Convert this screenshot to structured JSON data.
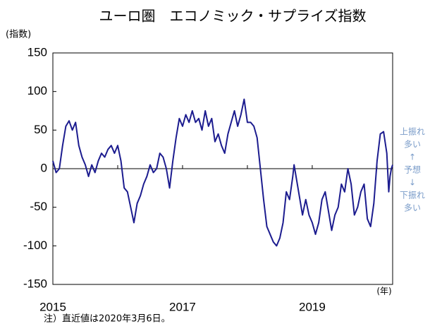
{
  "chart_data": {
    "type": "line",
    "title": "ユーロ圏　エコノミック・サプライズ指数",
    "y_label": "(指数)",
    "x_label": "(年)",
    "note": "注）直近値は2020年3月6日。",
    "annotations": [
      "上振れ",
      "多い",
      "↑",
      "予想",
      "↓",
      "下振れ",
      "多い"
    ],
    "color": "#1c1c8f",
    "xlim": [
      2015,
      2020.24
    ],
    "xticks": [
      2015,
      2017,
      2019
    ],
    "minor_xticks": [
      2016,
      2017,
      2018,
      2019,
      2020
    ],
    "ylim": [
      -150,
      150
    ],
    "yticks": [
      -150,
      -100,
      -50,
      0,
      50,
      100,
      150
    ],
    "x": [
      2015.0,
      2015.05,
      2015.1,
      2015.15,
      2015.2,
      2015.25,
      2015.3,
      2015.35,
      2015.4,
      2015.45,
      2015.5,
      2015.55,
      2015.6,
      2015.65,
      2015.7,
      2015.75,
      2015.8,
      2015.85,
      2015.9,
      2015.95,
      2016.0,
      2016.05,
      2016.1,
      2016.15,
      2016.2,
      2016.25,
      2016.3,
      2016.35,
      2016.4,
      2016.45,
      2016.5,
      2016.55,
      2016.6,
      2016.65,
      2016.7,
      2016.75,
      2016.8,
      2016.85,
      2016.9,
      2016.95,
      2017.0,
      2017.05,
      2017.1,
      2017.15,
      2017.2,
      2017.25,
      2017.3,
      2017.35,
      2017.4,
      2017.45,
      2017.5,
      2017.55,
      2017.6,
      2017.65,
      2017.7,
      2017.75,
      2017.8,
      2017.85,
      2017.9,
      2017.95,
      2018.0,
      2018.05,
      2018.1,
      2018.15,
      2018.2,
      2018.25,
      2018.3,
      2018.35,
      2018.4,
      2018.45,
      2018.5,
      2018.55,
      2018.6,
      2018.65,
      2018.7,
      2018.72,
      2018.78,
      2018.85,
      2018.9,
      2018.95,
      2019.0,
      2019.05,
      2019.1,
      2019.15,
      2019.2,
      2019.25,
      2019.3,
      2019.35,
      2019.4,
      2019.45,
      2019.5,
      2019.55,
      2019.6,
      2019.65,
      2019.7,
      2019.75,
      2019.8,
      2019.85,
      2019.9,
      2019.95,
      2020.0,
      2020.05,
      2020.1,
      2020.15,
      2020.18,
      2020.2,
      2020.22,
      2020.24
    ],
    "values": [
      10,
      -5,
      0,
      30,
      55,
      62,
      50,
      60,
      30,
      15,
      5,
      -10,
      5,
      -5,
      10,
      20,
      15,
      25,
      30,
      20,
      30,
      10,
      -25,
      -30,
      -50,
      -70,
      -45,
      -35,
      -20,
      -10,
      5,
      -5,
      0,
      20,
      15,
      0,
      -25,
      10,
      40,
      65,
      55,
      70,
      60,
      75,
      60,
      65,
      50,
      75,
      55,
      65,
      35,
      45,
      30,
      20,
      45,
      60,
      75,
      55,
      70,
      90,
      60,
      60,
      55,
      40,
      0,
      -40,
      -75,
      -85,
      -95,
      -100,
      -90,
      -70,
      -30,
      -40,
      -10,
      5,
      -25,
      -60,
      -40,
      -60,
      -70,
      -85,
      -70,
      -40,
      -30,
      -55,
      -80,
      -60,
      -50,
      -20,
      -30,
      0,
      -20,
      -60,
      -50,
      -30,
      -20,
      -65,
      -75,
      -45,
      10,
      45,
      48,
      20,
      -30,
      -10,
      0,
      5
    ]
  }
}
